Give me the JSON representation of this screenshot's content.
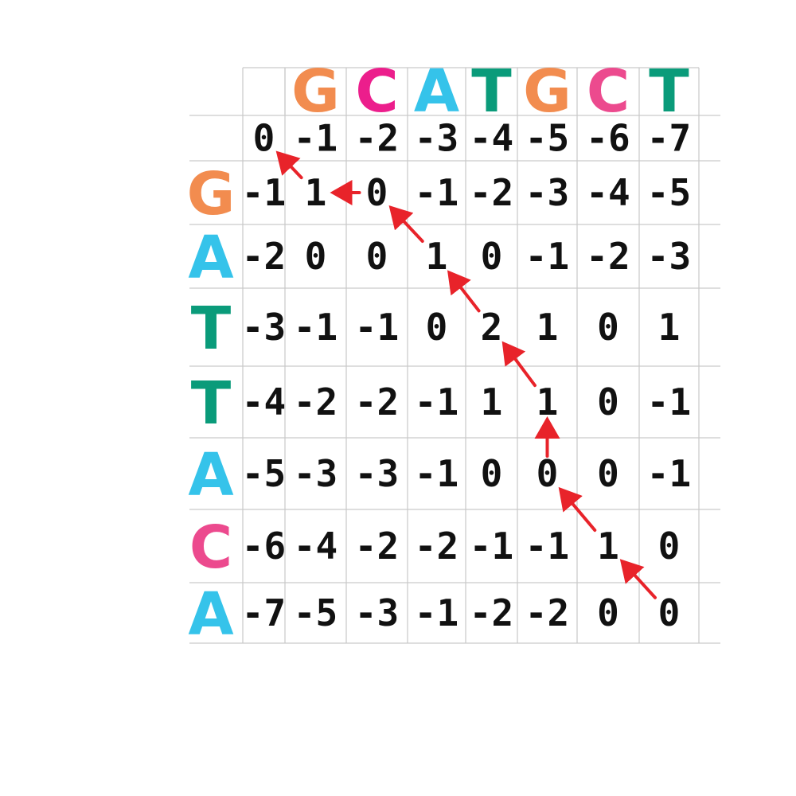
{
  "top_sequence": [
    {
      "letter": "G",
      "color": "#f28c4f"
    },
    {
      "letter": "C",
      "color": "#ec1e8c"
    },
    {
      "letter": "A",
      "color": "#35c3ea"
    },
    {
      "letter": "T",
      "color": "#0a9b7a"
    },
    {
      "letter": "G",
      "color": "#f28c4f"
    },
    {
      "letter": "C",
      "color": "#ec4a8e"
    },
    {
      "letter": "T",
      "color": "#0a9b7a"
    }
  ],
  "left_sequence": [
    {
      "letter": "G",
      "color": "#f28c4f"
    },
    {
      "letter": "A",
      "color": "#35c3ea"
    },
    {
      "letter": "T",
      "color": "#0a9b7a"
    },
    {
      "letter": "T",
      "color": "#0a9b7a"
    },
    {
      "letter": "A",
      "color": "#35c3ea"
    },
    {
      "letter": "C",
      "color": "#ec4a8e"
    },
    {
      "letter": "A",
      "color": "#35c3ea"
    }
  ],
  "matrix": [
    [
      "0",
      "-1",
      "-2",
      "-3",
      "-4",
      "-5",
      "-6",
      "-7"
    ],
    [
      "-1",
      "1",
      "0",
      "-1",
      "-2",
      "-3",
      "-4",
      "-5"
    ],
    [
      "-2",
      "0",
      "0",
      "1",
      "0",
      "-1",
      "-2",
      "-3"
    ],
    [
      "-3",
      "-1",
      "-1",
      "0",
      "2",
      "1",
      "0",
      "1"
    ],
    [
      "-4",
      "-2",
      "-2",
      "-1",
      "1",
      "1",
      "0",
      "-1"
    ],
    [
      "-5",
      "-3",
      "-3",
      "-1",
      "0",
      "0",
      "0",
      "-1"
    ],
    [
      "-6",
      "-4",
      "-2",
      "-2",
      "-1",
      "-1",
      "1",
      "0"
    ],
    [
      "-7",
      "-5",
      "-3",
      "-1",
      "-2",
      "-2",
      "0",
      "0"
    ]
  ],
  "traceback": [
    {
      "from": [
        7,
        7
      ],
      "to": [
        6,
        6
      ],
      "direction": "diagonal"
    },
    {
      "from": [
        6,
        6
      ],
      "to": [
        5,
        5
      ],
      "direction": "diagonal"
    },
    {
      "from": [
        5,
        5
      ],
      "to": [
        4,
        5
      ],
      "direction": "up"
    },
    {
      "from": [
        4,
        5
      ],
      "to": [
        3,
        4
      ],
      "direction": "diagonal"
    },
    {
      "from": [
        3,
        4
      ],
      "to": [
        2,
        3
      ],
      "direction": "diagonal"
    },
    {
      "from": [
        2,
        3
      ],
      "to": [
        1,
        2
      ],
      "direction": "diagonal"
    },
    {
      "from": [
        1,
        2
      ],
      "to": [
        1,
        1
      ],
      "direction": "left"
    },
    {
      "from": [
        1,
        1
      ],
      "to": [
        0,
        0
      ],
      "direction": "diagonal"
    }
  ],
  "arrow_color": "#e8232a"
}
